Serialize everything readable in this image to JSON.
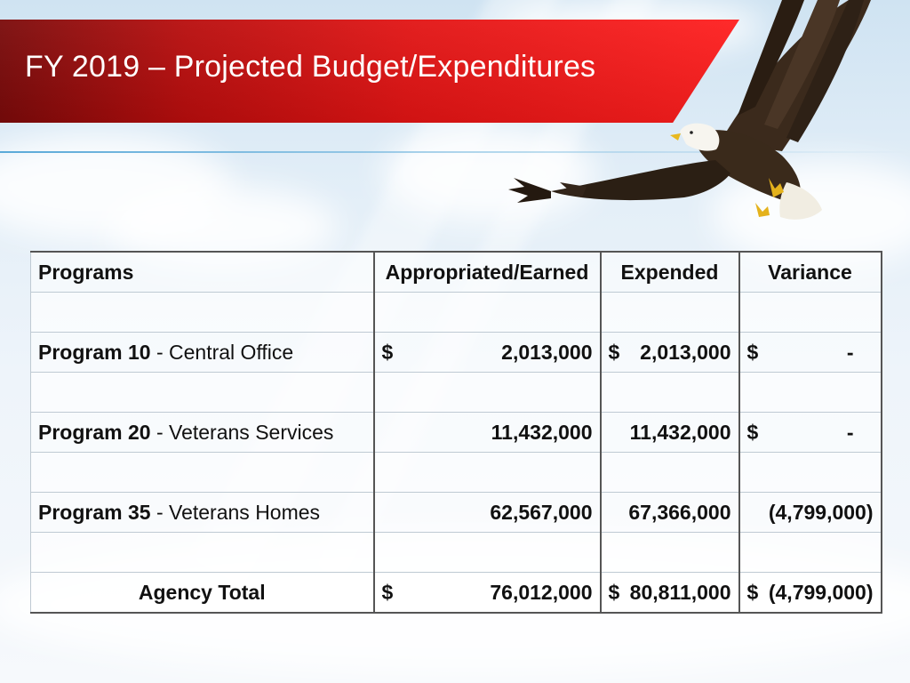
{
  "slide": {
    "title": "FY 2019 – Projected Budget/Expenditures"
  },
  "table": {
    "headers": {
      "programs": "Programs",
      "appropriated": "Appropriated/Earned",
      "expended": "Expended",
      "variance": "Variance"
    },
    "rows": [
      {
        "code": "Program 10",
        "sep": " - ",
        "name": "Central Office",
        "appropriated_cur": "$",
        "appropriated": "2,013,000",
        "expended_cur": "$",
        "expended": "2,013,000",
        "variance_cur": "$",
        "variance": "-"
      },
      {
        "code": "Program 20",
        "sep": " - ",
        "name": "Veterans Services",
        "appropriated_cur": "",
        "appropriated": "11,432,000",
        "expended_cur": "",
        "expended": "11,432,000",
        "variance_cur": "$",
        "variance": "-"
      },
      {
        "code": "Program 35",
        "sep": " - ",
        "name": "Veterans Homes",
        "appropriated_cur": "",
        "appropriated": "62,567,000",
        "expended_cur": "",
        "expended": "67,366,000",
        "variance_cur": "",
        "variance": "(4,799,000)"
      }
    ],
    "total": {
      "label": "Agency Total",
      "appropriated_cur": "$",
      "appropriated": "76,012,000",
      "expended_cur": "$",
      "expended": "80,811,000",
      "variance_cur": "$",
      "variance": "(4,799,000)"
    }
  },
  "decor": {
    "eagle": "bald-eagle-image",
    "banner_color": "#e11414"
  }
}
